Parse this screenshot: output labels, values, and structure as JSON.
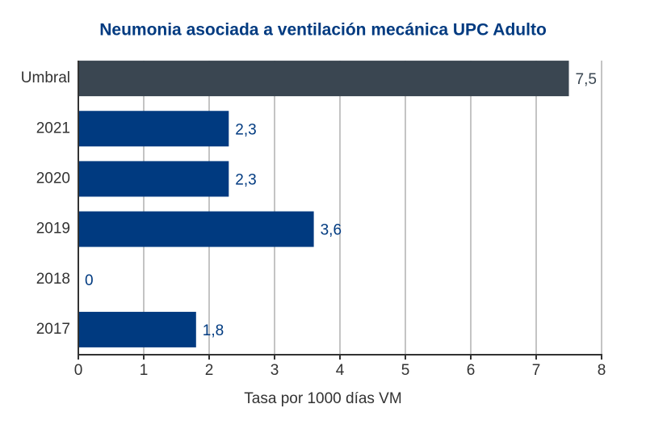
{
  "chart_data": {
    "type": "hbar",
    "title": "Neumonia asociada a ventilación mecánica UPC Adulto",
    "categories": [
      "Umbral",
      "2021",
      "2020",
      "2019",
      "2018",
      "2017"
    ],
    "values": [
      7.5,
      2.3,
      2.3,
      3.6,
      0,
      1.8
    ],
    "value_labels": [
      "7,5",
      "2,3",
      "2,3",
      "3,6",
      "0",
      "1,8"
    ],
    "colors": [
      "#3a4651",
      "#003a80",
      "#003a80",
      "#003a80",
      "#003a80",
      "#003a80"
    ],
    "xlabel": "Tasa por 1000 días VM",
    "xlim": [
      0,
      8
    ],
    "xticks": [
      0,
      1,
      2,
      3,
      4,
      5,
      6,
      7,
      8
    ],
    "grid": true
  }
}
